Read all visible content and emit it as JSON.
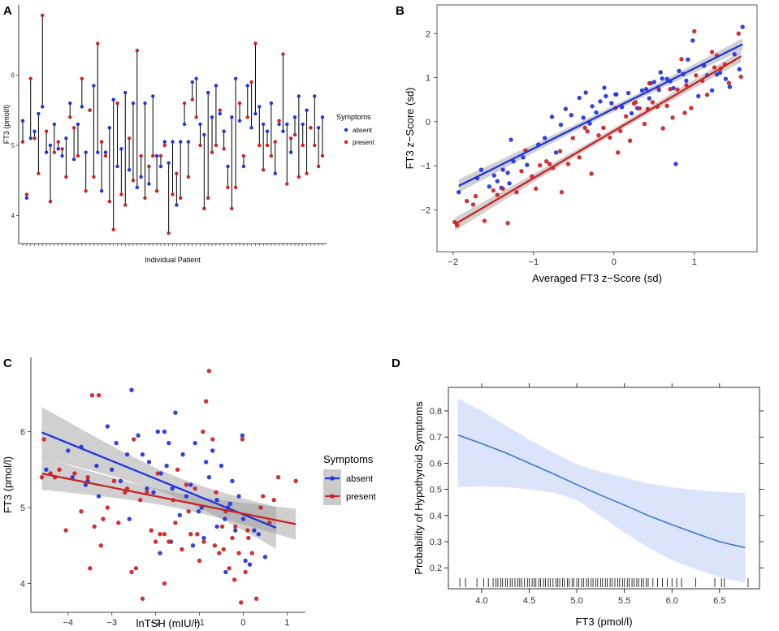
{
  "colors": {
    "absent": "#2233dd",
    "present": "#cc2222",
    "ci_gray": "#bdbdbd",
    "panel_bg": "#ebebeb",
    "ribbon_blue": "#dce4fb",
    "line_blue": "#3a77d0"
  },
  "chart_data": [
    {
      "panel": "A",
      "type": "scatter",
      "xlabel": "Individual Patient",
      "ylabel": "FT3 (pmol/l)",
      "ylim": [
        3.6,
        7.0
      ],
      "yticks": [
        4,
        5,
        6
      ],
      "legend": {
        "title": "Symptoms",
        "entries": [
          "absent",
          "present"
        ],
        "position": "right"
      },
      "n_patients": 77,
      "series": [
        {
          "name": "absent",
          "values": [
            5.35,
            4.25,
            5.1,
            5.2,
            5.45,
            5.55,
            4.9,
            5.0,
            5.3,
            4.95,
            4.85,
            5.1,
            5.6,
            4.8,
            5.3,
            5.55,
            4.9,
            5.5,
            5.85,
            4.9,
            4.35,
            4.9,
            5.25,
            5.65,
            4.7,
            4.95,
            5.75,
            4.65,
            5.6,
            4.4,
            4.55,
            5.6,
            4.45,
            5.7,
            4.85,
            4.7,
            5.05,
            4.75,
            5.05,
            4.15,
            5.05,
            5.3,
            5.05,
            5.9,
            5.95,
            5.3,
            5.15,
            5.75,
            5.4,
            5.85,
            5.45,
            5.2,
            4.7,
            5.4,
            5.95,
            5.35,
            4.7,
            5.85,
            5.25,
            5.45,
            5.55,
            5.3,
            5.2,
            5.6,
            4.6,
            5.3,
            5.2,
            5.3,
            4.9,
            5.4,
            5.7,
            5.3,
            5.5,
            5.25,
            5.7,
            5.25,
            5.4
          ]
        },
        {
          "name": "present",
          "values": [
            5.05,
            4.3,
            5.95,
            5.1,
            4.6,
            6.85,
            5.2,
            4.2,
            4.9,
            5.05,
            4.95,
            4.55,
            5.4,
            5.25,
            4.85,
            5.95,
            4.35,
            5.5,
            4.55,
            6.45,
            5.05,
            4.85,
            4.2,
            3.8,
            5.6,
            4.3,
            4.15,
            5.1,
            4.5,
            6.35,
            4.85,
            4.25,
            4.7,
            4.85,
            4.35,
            4.85,
            5.0,
            3.75,
            4.3,
            4.6,
            4.25,
            5.6,
            4.55,
            5.65,
            5.4,
            5.0,
            4.1,
            4.25,
            4.9,
            5.0,
            5.5,
            4.95,
            4.4,
            4.1,
            4.4,
            5.6,
            4.85,
            5.4,
            5.9,
            6.45,
            5.0,
            4.65,
            5.0,
            4.85,
            5.05,
            5.35,
            6.3,
            4.45,
            5.1,
            5.15,
            4.55,
            5.0,
            4.6,
            5.25,
            5.0,
            4.7,
            4.85
          ]
        }
      ]
    },
    {
      "panel": "B",
      "type": "scatter",
      "xlabel": "Averaged FT3 z−Score (sd)",
      "ylabel": "FT3 z−Score (sd)",
      "xlim": [
        -2.2,
        1.78
      ],
      "ylim": [
        -2.95,
        2.65
      ],
      "xticks": [
        -2,
        -1,
        0,
        1
      ],
      "yticks": [
        -2,
        -1,
        0,
        1,
        2
      ],
      "series": [
        {
          "name": "absent",
          "fit": {
            "intercept": 0.3,
            "slope": 0.91
          },
          "x": [
            -1.93,
            -1.7,
            -1.65,
            -1.55,
            -1.49,
            -1.45,
            -1.4,
            -1.32,
            -1.3,
            -1.28,
            -1.25,
            -1.13,
            -1.08,
            -0.94,
            -0.86,
            -0.77,
            -0.72,
            -0.66,
            -0.53,
            -0.43,
            -0.38,
            -0.35,
            -0.27,
            -0.22,
            -0.17,
            -0.1,
            -0.03,
            0.03,
            0.1,
            0.18,
            0.29,
            0.35,
            0.4,
            0.44,
            0.5,
            0.56,
            0.6,
            0.66,
            0.7,
            0.74,
            0.81,
            0.86,
            0.9,
            0.98,
            1.05,
            1.12,
            1.16,
            1.22,
            1.28,
            1.32,
            1.39,
            1.44,
            1.5,
            1.56,
            1.6,
            -0.6,
            -0.12,
            0.22,
            0.46,
            0.77,
            -0.3,
            0.02,
            0.58,
            0.92,
            -1.38
          ],
          "y": [
            -1.6,
            -1.28,
            -1.09,
            -1.47,
            -1.22,
            -1.35,
            -1.5,
            -1.16,
            -1.4,
            -0.41,
            -0.9,
            -0.81,
            -0.98,
            -0.52,
            -0.37,
            0.11,
            -0.7,
            -0.07,
            0.15,
            0.54,
            0.09,
            0.66,
            0.35,
            0.21,
            0.46,
            0.58,
            0.42,
            0.62,
            0.33,
            0.65,
            0.31,
            0.71,
            0.74,
            0.53,
            0.9,
            0.72,
            0.98,
            0.97,
            0.92,
            0.76,
            1.15,
            1.08,
            0.93,
            1.84,
            0.58,
            1.27,
            1.05,
            0.71,
            1.07,
            1.11,
            0.97,
            0.79,
            1.53,
            1.19,
            2.15,
            0.29,
            0.77,
            0.19,
            0.87,
            -0.96,
            -0.04,
            0.62,
            1.12,
            1.41,
            -1.09
          ]
        },
        {
          "name": "present",
          "fit": {
            "intercept": -0.21,
            "slope": 1.07
          },
          "x": [
            -1.98,
            -1.95,
            -1.83,
            -1.72,
            -1.61,
            -1.5,
            -1.38,
            -1.32,
            -1.21,
            -1.15,
            -1.1,
            -1.02,
            -0.92,
            -0.84,
            -0.76,
            -0.67,
            -0.57,
            -0.51,
            -0.43,
            -0.36,
            -0.28,
            -0.19,
            -0.13,
            -0.05,
            0.02,
            0.08,
            0.15,
            0.2,
            0.27,
            0.32,
            0.38,
            0.42,
            0.48,
            0.54,
            0.61,
            0.66,
            0.73,
            0.79,
            0.84,
            0.9,
            0.96,
            1.02,
            1.1,
            1.16,
            1.22,
            1.28,
            1.33,
            1.38,
            1.43,
            1.55,
            1.58,
            -1.45,
            -0.97,
            -0.65,
            -0.33,
            0.05,
            0.44,
            0.7,
            1.0,
            -1.75,
            -0.8,
            0.25,
            0.55,
            0.88,
            1.25
          ],
          "y": [
            -2.28,
            -2.35,
            -1.8,
            -1.69,
            -2.25,
            -1.56,
            -1.52,
            -2.3,
            -1.6,
            -1.12,
            -0.65,
            -1.24,
            -0.99,
            -0.9,
            -1.05,
            -0.67,
            -0.96,
            -0.37,
            -0.81,
            -0.14,
            -1.18,
            -0.31,
            -0.14,
            -0.36,
            0.31,
            -0.21,
            0.12,
            -0.43,
            0.44,
            0.3,
            -0.05,
            0.29,
            0.44,
            0.34,
            -0.15,
            0.36,
            0.09,
            0.73,
            1.42,
            0.83,
            0.31,
            1.05,
            0.93,
            0.61,
            1.58,
            1.5,
            1.21,
            1.3,
            0.88,
            2.0,
            1.02,
            -1.66,
            -1.52,
            -1.6,
            -0.22,
            -0.7,
            0.87,
            0.74,
            2.05,
            -1.88,
            -0.96,
            0.41,
            0.78,
            0.2,
            1.23
          ]
        }
      ]
    },
    {
      "panel": "C",
      "type": "scatter",
      "xlabel": "lnTSH (mIU/l)",
      "ylabel": "FT3 (pmol/l)",
      "xlim": [
        -4.85,
        1.42
      ],
      "ylim": [
        3.62,
        6.98
      ],
      "xticks": [
        -4,
        -3,
        -2,
        -1,
        0,
        1
      ],
      "yticks": [
        4,
        5,
        6
      ],
      "legend": {
        "title": "Symptoms",
        "entries": [
          "absent",
          "present"
        ],
        "position": "right"
      },
      "series": [
        {
          "name": "absent",
          "fit": {
            "intercept": 4.91,
            "slope": -0.235
          },
          "x": [
            -4.5,
            -4.0,
            -3.9,
            -3.7,
            -3.55,
            -3.35,
            -3.3,
            -3.1,
            -3.0,
            -2.9,
            -2.8,
            -2.65,
            -2.55,
            -2.4,
            -2.3,
            -2.15,
            -2.05,
            -1.95,
            -1.88,
            -1.8,
            -1.7,
            -1.62,
            -1.55,
            -1.45,
            -1.38,
            -1.3,
            -1.2,
            -1.1,
            -1.02,
            -0.95,
            -0.85,
            -0.78,
            -0.7,
            -0.6,
            -0.5,
            -0.42,
            -0.35,
            -0.25,
            -0.18,
            -0.1,
            -0.02,
            0.05,
            0.15,
            0.25,
            0.35,
            0.5,
            -2.6,
            -1.65,
            -0.9,
            -0.4,
            -2.2,
            -1.15,
            -0.3,
            -3.6,
            -1.75,
            0.0,
            -0.6,
            -1.9
          ],
          "y": [
            5.5,
            5.75,
            5.4,
            5.8,
            5.35,
            5.55,
            5.15,
            6.07,
            5.5,
            5.85,
            5.35,
            5.7,
            6.55,
            5.95,
            5.7,
            5.6,
            5.2,
            6.0,
            5.45,
            6.0,
            5.85,
            5.25,
            6.25,
            4.9,
            5.7,
            5.15,
            5.3,
            5.85,
            4.95,
            5.0,
            5.6,
            5.4,
            5.75,
            5.1,
            5.55,
            4.85,
            5.0,
            5.35,
            4.7,
            5.15,
            5.95,
            4.3,
            4.25,
            4.7,
            4.65,
            4.35,
            4.85,
            4.55,
            4.6,
            4.15,
            5.25,
            4.5,
            5.05,
            5.3,
            5.55,
            4.85,
            4.75,
            4.4
          ]
        },
        {
          "name": "present",
          "fit": {
            "intercept": 4.92,
            "slope": -0.115
          },
          "x": [
            -4.6,
            -4.4,
            -4.2,
            -4.05,
            -3.85,
            -3.7,
            -3.5,
            -3.45,
            -3.3,
            -3.2,
            -3.1,
            -2.95,
            -2.85,
            -2.7,
            -2.55,
            -2.45,
            -2.35,
            -2.2,
            -2.1,
            -2.0,
            -1.9,
            -1.8,
            -1.7,
            -1.6,
            -1.5,
            -1.4,
            -1.3,
            -1.2,
            -1.1,
            -1.0,
            -0.92,
            -0.85,
            -0.78,
            -0.7,
            -0.62,
            -0.55,
            -0.48,
            -0.4,
            -0.32,
            -0.25,
            -0.18,
            -0.1,
            -0.02,
            0.05,
            0.12,
            0.2,
            0.3,
            0.4,
            0.6,
            0.8,
            1.2,
            -3.4,
            -2.65,
            -1.95,
            -1.25,
            -0.65,
            0.1,
            -4.55,
            -4.3,
            -3.25,
            -2.5,
            -1.55,
            -0.2,
            -3.55,
            -1.05,
            -0.45,
            0.45,
            -2.3,
            -1.8,
            -0.9,
            -0.05,
            0.7
          ],
          "y": [
            5.4,
            5.45,
            5.5,
            4.7,
            5.45,
            4.95,
            4.2,
            6.48,
            6.48,
            4.85,
            5.0,
            5.35,
            4.8,
            5.2,
            4.15,
            4.2,
            5.1,
            5.2,
            4.7,
            4.55,
            4.65,
            4.0,
            4.55,
            5.1,
            5.5,
            4.45,
            5.3,
            4.65,
            5.25,
            4.3,
            6.0,
            6.4,
            6.8,
            5.9,
            5.2,
            4.4,
            4.75,
            4.95,
            4.2,
            4.6,
            4.75,
            4.4,
            5.9,
            4.15,
            4.6,
            4.4,
            3.8,
            5.0,
            4.8,
            5.4,
            5.35,
            4.75,
            5.25,
            5.45,
            4.95,
            4.5,
            4.7,
            5.9,
            5.4,
            4.5,
            5.9,
            4.8,
            4.05,
            5.4,
            4.65,
            4.45,
            5.15,
            3.8,
            4.65,
            4.55,
            3.75,
            5.1
          ]
        }
      ]
    },
    {
      "panel": "D",
      "type": "line",
      "xlabel": "FT3 (pmol/l)",
      "ylabel": "Probability of Hypothyroid Symptoms",
      "xlim": [
        3.65,
        6.92
      ],
      "ylim": [
        0.12,
        0.89
      ],
      "xticks": [
        4.0,
        4.5,
        5.0,
        5.5,
        6.0,
        6.5
      ],
      "yticks": [
        0.2,
        0.3,
        0.4,
        0.5,
        0.6,
        0.7,
        0.8
      ],
      "x": [
        3.75,
        4.0,
        4.25,
        4.5,
        4.75,
        5.0,
        5.25,
        5.5,
        5.75,
        6.0,
        6.25,
        6.5,
        6.77
      ],
      "y": [
        0.708,
        0.675,
        0.64,
        0.6,
        0.56,
        0.518,
        0.478,
        0.44,
        0.4,
        0.365,
        0.332,
        0.3,
        0.277
      ],
      "ci_lower": [
        0.508,
        0.512,
        0.508,
        0.5,
        0.488,
        0.46,
        0.398,
        0.335,
        0.278,
        0.23,
        0.195,
        0.165,
        0.143
      ],
      "ci_upper": [
        0.848,
        0.8,
        0.745,
        0.69,
        0.642,
        0.595,
        0.568,
        0.545,
        0.522,
        0.508,
        0.498,
        0.49,
        0.486
      ],
      "rug": [
        3.77,
        3.83,
        3.95,
        4.02,
        4.07,
        4.12,
        4.15,
        4.17,
        4.2,
        4.22,
        4.25,
        4.27,
        4.3,
        4.32,
        4.35,
        4.38,
        4.4,
        4.42,
        4.45,
        4.48,
        4.5,
        4.53,
        4.55,
        4.57,
        4.6,
        4.62,
        4.65,
        4.67,
        4.7,
        4.72,
        4.75,
        4.78,
        4.8,
        4.82,
        4.85,
        4.87,
        4.9,
        4.92,
        4.95,
        4.97,
        5.0,
        5.02,
        5.05,
        5.07,
        5.1,
        5.12,
        5.15,
        5.17,
        5.2,
        5.22,
        5.25,
        5.27,
        5.3,
        5.32,
        5.35,
        5.37,
        5.4,
        5.43,
        5.45,
        5.48,
        5.5,
        5.53,
        5.55,
        5.58,
        5.6,
        5.63,
        5.65,
        5.68,
        5.7,
        5.73,
        5.75,
        5.8,
        5.85,
        5.9,
        5.95,
        6.0,
        6.05,
        6.1,
        6.25,
        6.45,
        6.52,
        6.55,
        6.8
      ]
    }
  ]
}
